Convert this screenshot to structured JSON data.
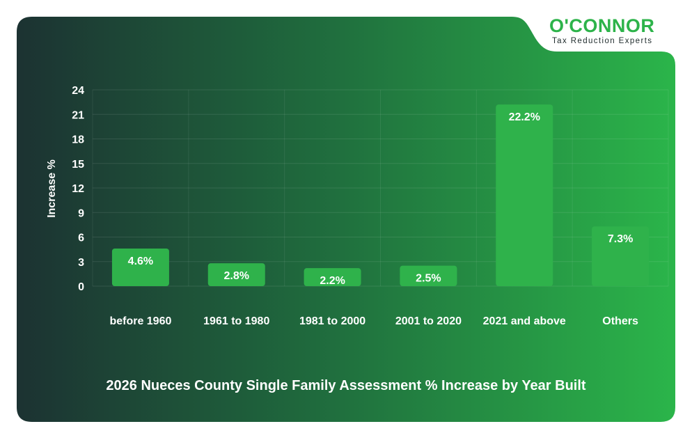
{
  "brand": {
    "name": "O'CONNOR",
    "tagline": "Tax Reduction Experts",
    "accent_color": "#2db34a"
  },
  "chart_data": {
    "type": "bar",
    "title": "2026 Nueces County Single Family Assessment % Increase by Year Built",
    "xlabel": "",
    "ylabel": "Increase %",
    "categories": [
      "before 1960",
      "1961 to 1980",
      "1981 to 2000",
      "2001 to 2020",
      "2021 and above",
      "Others"
    ],
    "values": [
      4.6,
      2.8,
      2.2,
      2.5,
      22.2,
      7.3
    ],
    "value_labels": [
      "4.6%",
      "2.8%",
      "2.2%",
      "2.5%",
      "22.2%",
      "7.3%"
    ],
    "yticks": [
      0,
      3,
      6,
      9,
      12,
      15,
      18,
      21,
      24
    ],
    "ylim": [
      0,
      24
    ],
    "grid": true,
    "bar_color": "#2fb24b",
    "background_gradient": [
      "#1c3232",
      "#2bb54a"
    ]
  }
}
